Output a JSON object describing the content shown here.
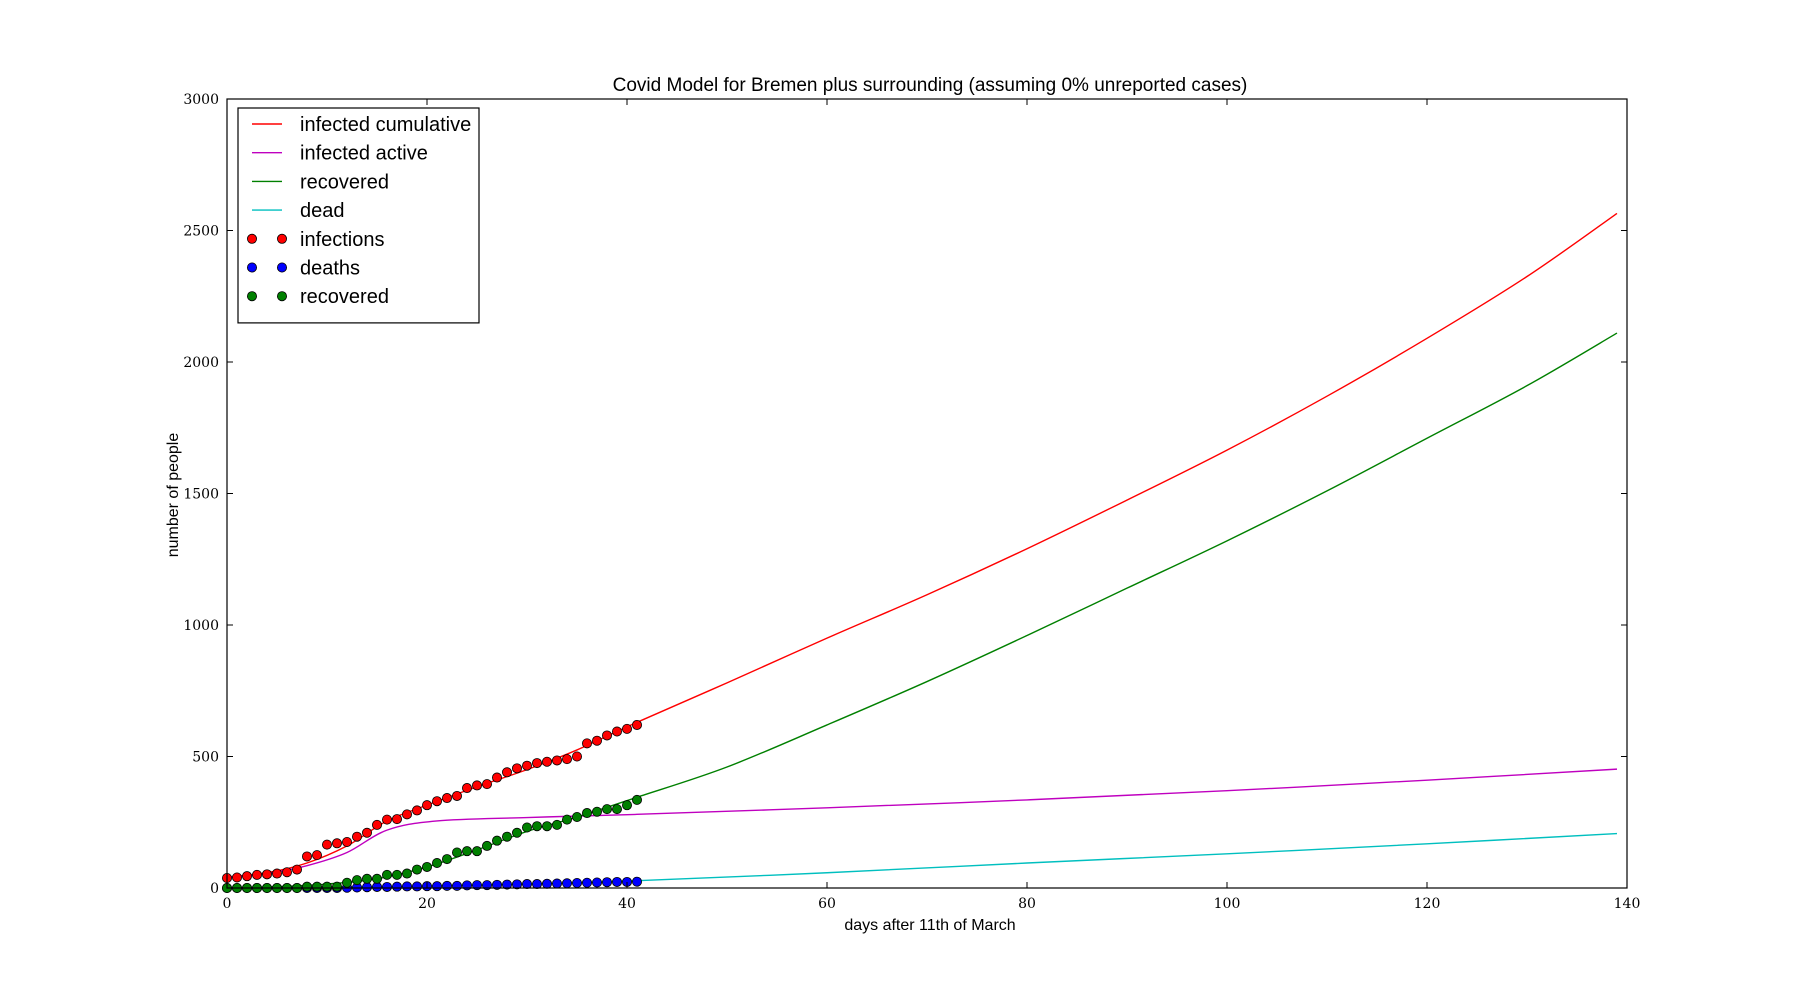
{
  "chart_data": {
    "type": "line",
    "title": "Covid Model for Bremen plus surrounding (assuming 0% unreported cases)",
    "xlabel": "days after 11th of March",
    "ylabel": "number of people",
    "xlim": [
      0,
      140
    ],
    "ylim": [
      0,
      3000
    ],
    "xticks": [
      0,
      20,
      40,
      60,
      80,
      100,
      120,
      140
    ],
    "yticks": [
      0,
      500,
      1000,
      1500,
      2000,
      2500,
      3000
    ],
    "grid": false,
    "legend_position": "top-left",
    "model_series": [
      {
        "name": "infected cumulative",
        "color": "#ff0000",
        "style": "line",
        "points": [
          [
            0,
            42
          ],
          [
            4,
            58
          ],
          [
            8,
            95
          ],
          [
            12,
            160
          ],
          [
            16,
            255
          ],
          [
            20,
            315
          ],
          [
            25,
            385
          ],
          [
            30,
            450
          ],
          [
            35,
            525
          ],
          [
            41,
            630
          ],
          [
            50,
            780
          ],
          [
            60,
            950
          ],
          [
            70,
            1115
          ],
          [
            80,
            1290
          ],
          [
            90,
            1475
          ],
          [
            100,
            1665
          ],
          [
            110,
            1870
          ],
          [
            120,
            2090
          ],
          [
            130,
            2325
          ],
          [
            139,
            2565
          ]
        ]
      },
      {
        "name": "infected active",
        "color": "#bf00bf",
        "style": "line",
        "points": [
          [
            0,
            40
          ],
          [
            4,
            55
          ],
          [
            8,
            85
          ],
          [
            12,
            135
          ],
          [
            16,
            220
          ],
          [
            21,
            255
          ],
          [
            30,
            268
          ],
          [
            41,
            280
          ],
          [
            60,
            305
          ],
          [
            80,
            335
          ],
          [
            100,
            370
          ],
          [
            120,
            410
          ],
          [
            139,
            452
          ]
        ]
      },
      {
        "name": "recovered",
        "color": "#008000",
        "style": "line",
        "points": [
          [
            0,
            0
          ],
          [
            5,
            5
          ],
          [
            10,
            15
          ],
          [
            15,
            35
          ],
          [
            20,
            80
          ],
          [
            25,
            145
          ],
          [
            30,
            215
          ],
          [
            35,
            270
          ],
          [
            41,
            345
          ],
          [
            50,
            460
          ],
          [
            60,
            620
          ],
          [
            70,
            785
          ],
          [
            80,
            960
          ],
          [
            90,
            1140
          ],
          [
            100,
            1320
          ],
          [
            110,
            1510
          ],
          [
            120,
            1710
          ],
          [
            130,
            1910
          ],
          [
            139,
            2110
          ]
        ]
      },
      {
        "name": "dead",
        "color": "#00bfbf",
        "style": "line",
        "points": [
          [
            0,
            0
          ],
          [
            10,
            3
          ],
          [
            20,
            8
          ],
          [
            30,
            15
          ],
          [
            41,
            28
          ],
          [
            60,
            58
          ],
          [
            80,
            95
          ],
          [
            100,
            130
          ],
          [
            120,
            168
          ],
          [
            139,
            207
          ]
        ]
      }
    ],
    "observed_series": [
      {
        "name": "infections",
        "color": "#ff0000",
        "style": "markers",
        "x": [
          0,
          1,
          2,
          3,
          4,
          5,
          6,
          7,
          8,
          9,
          10,
          11,
          12,
          13,
          14,
          15,
          16,
          17,
          18,
          19,
          20,
          21,
          22,
          23,
          24,
          25,
          26,
          27,
          28,
          29,
          30,
          31,
          32,
          33,
          34,
          35,
          36,
          37,
          38,
          39,
          40,
          41
        ],
        "y": [
          38,
          40,
          45,
          50,
          52,
          55,
          60,
          70,
          120,
          125,
          165,
          170,
          175,
          195,
          210,
          240,
          260,
          262,
          280,
          295,
          315,
          330,
          342,
          350,
          380,
          390,
          395,
          420,
          440,
          455,
          465,
          475,
          480,
          485,
          490,
          500,
          550,
          560,
          580,
          595,
          605,
          620
        ]
      },
      {
        "name": "deaths",
        "color": "#0000ff",
        "style": "markers",
        "x": [
          0,
          1,
          2,
          3,
          4,
          5,
          6,
          7,
          8,
          9,
          10,
          11,
          12,
          13,
          14,
          15,
          16,
          17,
          18,
          19,
          20,
          21,
          22,
          23,
          24,
          25,
          26,
          27,
          28,
          29,
          30,
          31,
          32,
          33,
          34,
          35,
          36,
          37,
          38,
          39,
          40,
          41
        ],
        "y": [
          0,
          0,
          0,
          0,
          0,
          0,
          0,
          0,
          0,
          0,
          0,
          0,
          1,
          2,
          3,
          4,
          4,
          5,
          6,
          6,
          7,
          7,
          8,
          8,
          10,
          11,
          11,
          12,
          13,
          14,
          15,
          15,
          16,
          17,
          18,
          19,
          20,
          21,
          22,
          23,
          23,
          24
        ]
      },
      {
        "name": "recovered",
        "color": "#008000",
        "style": "markers",
        "x": [
          0,
          1,
          2,
          3,
          4,
          5,
          6,
          7,
          8,
          9,
          10,
          11,
          12,
          13,
          14,
          15,
          16,
          17,
          18,
          19,
          20,
          21,
          22,
          23,
          24,
          25,
          26,
          27,
          28,
          29,
          30,
          31,
          32,
          33,
          34,
          35,
          36,
          37,
          38,
          39,
          40,
          41
        ],
        "y": [
          0,
          0,
          0,
          0,
          0,
          0,
          0,
          0,
          5,
          5,
          5,
          5,
          20,
          30,
          35,
          35,
          50,
          50,
          55,
          70,
          80,
          95,
          110,
          135,
          140,
          140,
          160,
          180,
          195,
          210,
          230,
          235,
          235,
          240,
          260,
          270,
          285,
          290,
          300,
          300,
          315,
          335
        ]
      }
    ]
  }
}
